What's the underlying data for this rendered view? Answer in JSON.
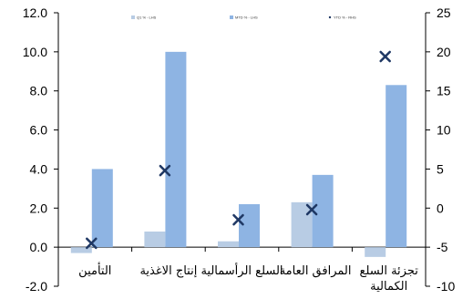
{
  "chart_data": {
    "type": "bar",
    "categories": [
      "التأمين",
      "إنتاج الاغذية",
      "السلع الرأسمالية",
      "المرافق العامة",
      "تجزئة السلع الكمالية"
    ],
    "left_axis": {
      "ylim": [
        -2.0,
        12.0
      ],
      "ticks": [
        "12.0",
        "10.0",
        "8.0",
        "6.0",
        "4.0",
        "2.0",
        "0.0",
        "-2.0"
      ]
    },
    "right_axis": {
      "ylim": [
        -10,
        25
      ],
      "ticks": [
        "25",
        "20",
        "15",
        "10",
        "5",
        "0",
        "-5",
        "-10"
      ]
    },
    "series": [
      {
        "name": "Q1 % - LHS",
        "axis": "left",
        "color": "#b8cce4",
        "values": [
          -0.3,
          0.8,
          0.3,
          2.3,
          -0.5
        ]
      },
      {
        "name": "MTD % - LHS",
        "axis": "left",
        "color": "#8eb4e3",
        "values": [
          4.0,
          10.0,
          2.2,
          3.7,
          8.3
        ]
      },
      {
        "name": "YTD % - RHS",
        "axis": "right",
        "color": "#1f3864",
        "marker": "x",
        "values": [
          -4.5,
          4.8,
          -1.5,
          -0.2,
          19.4
        ]
      }
    ],
    "legend_position": "top"
  }
}
